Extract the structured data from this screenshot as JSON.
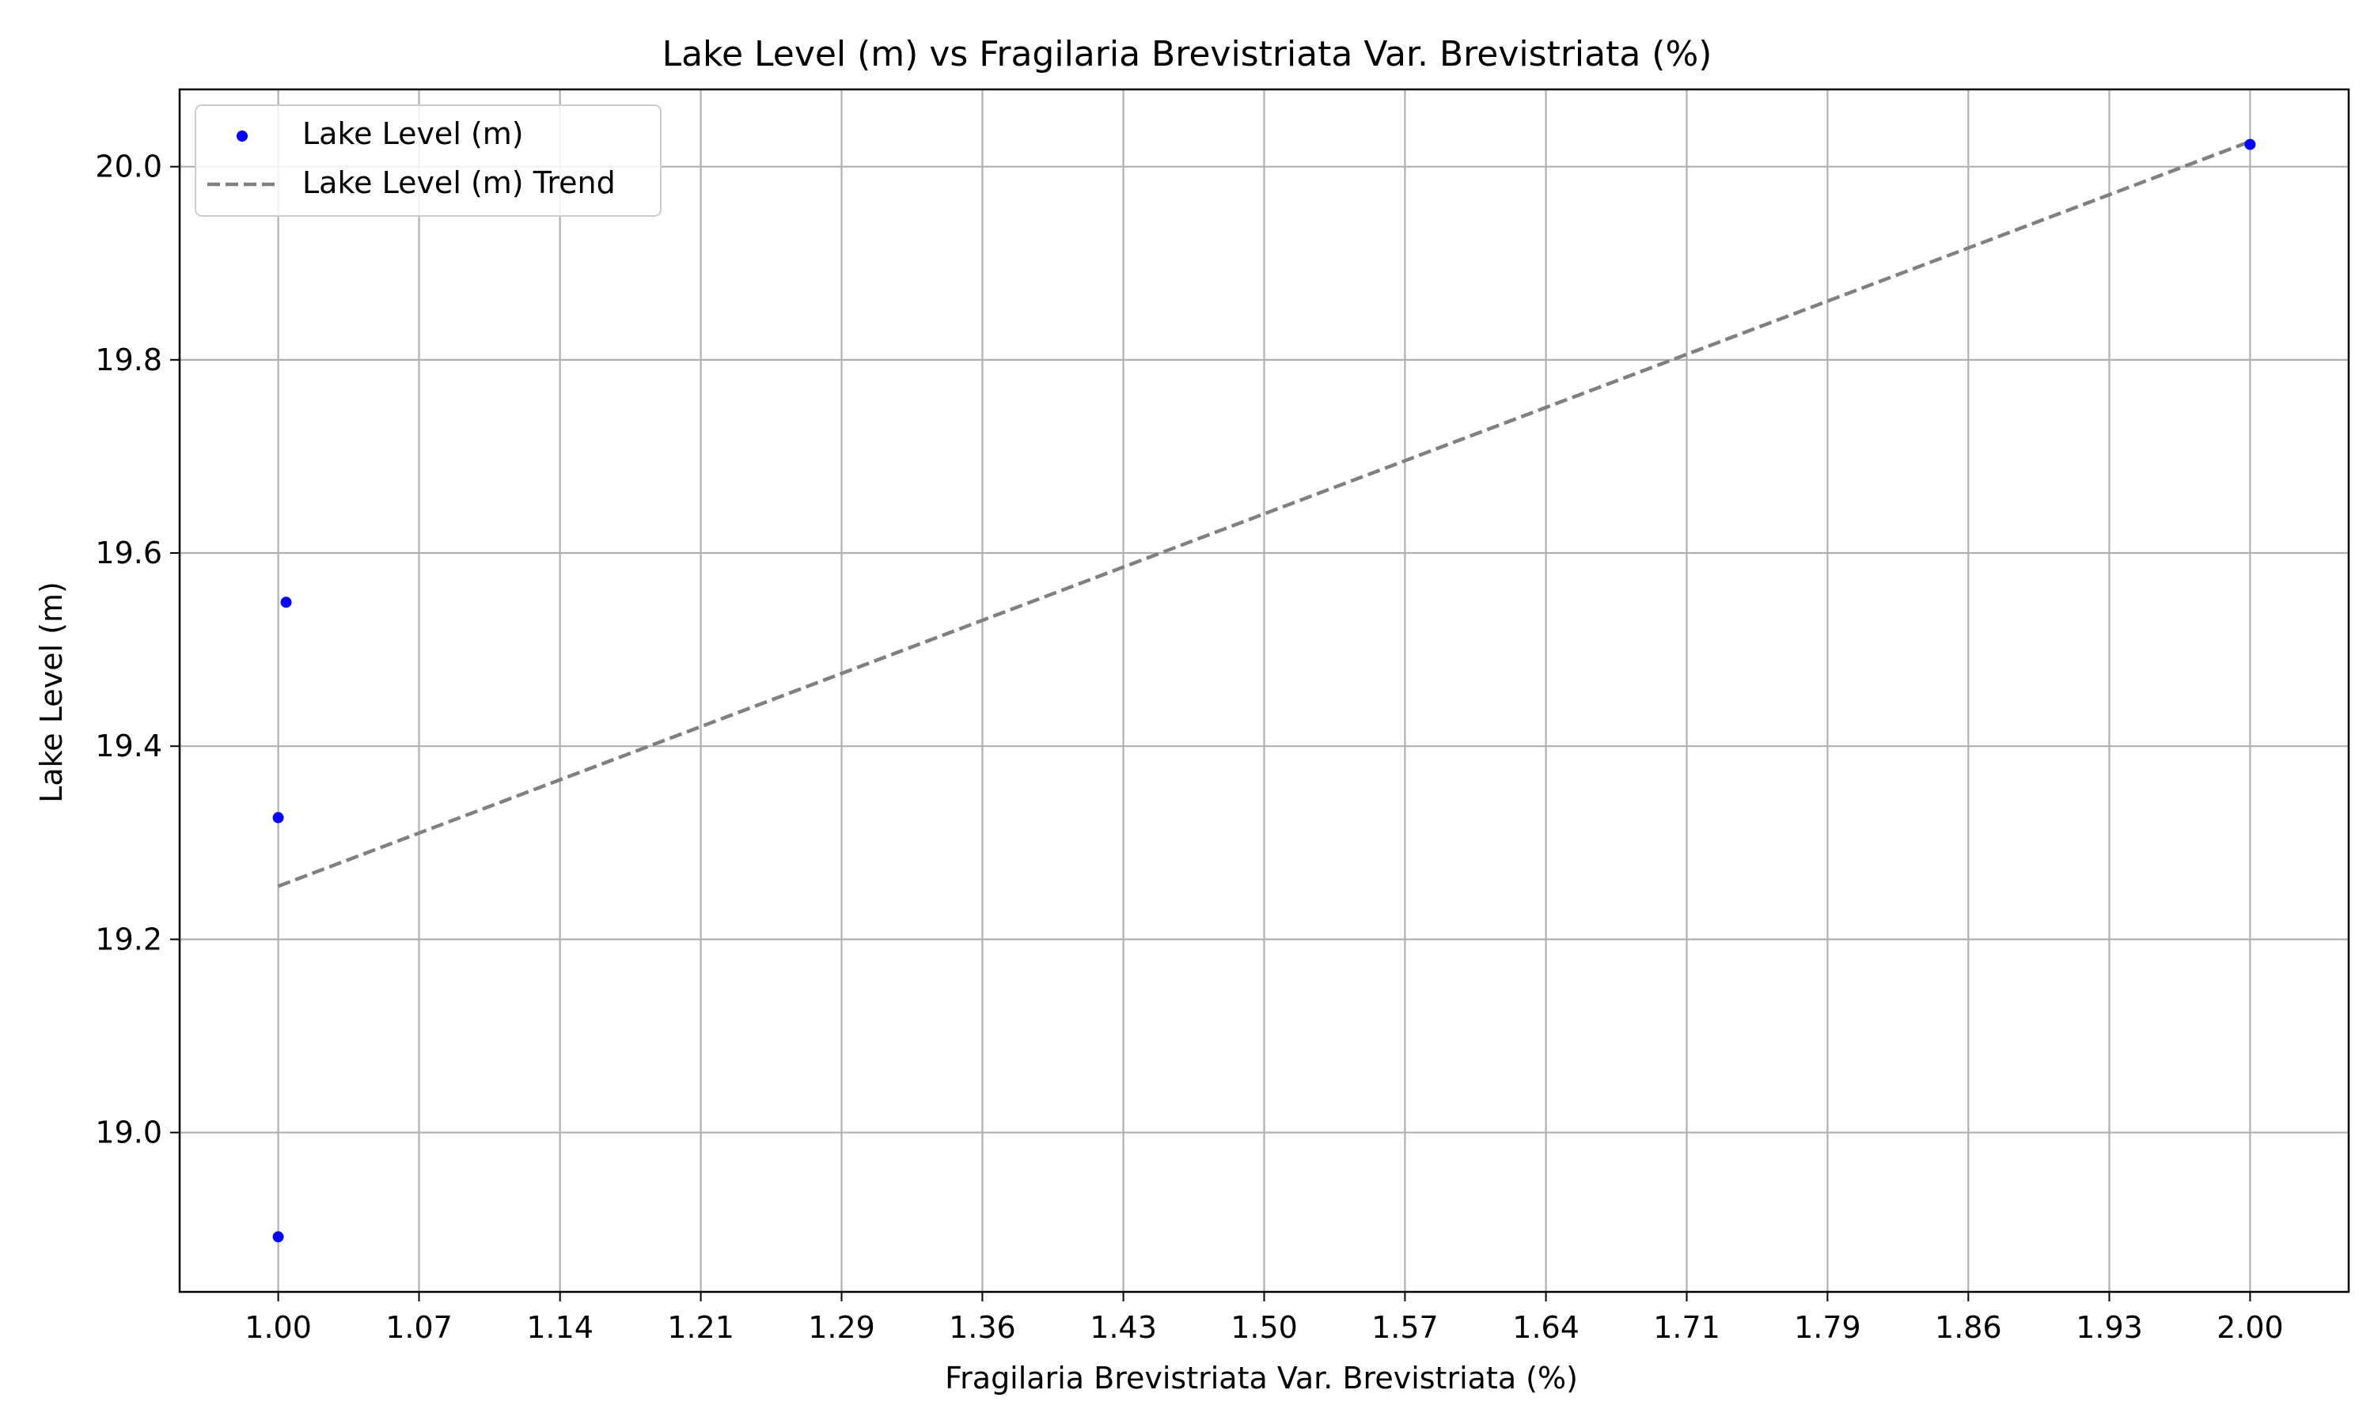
{
  "chart_data": {
    "type": "scatter",
    "title": "Lake Level (m) vs Fragilaria Brevistriata Var. Brevistriata (%)",
    "xlabel": "Fragilaria Brevistriata Var. Brevistriata (%)",
    "ylabel": "Lake Level (m)",
    "xlim": [
      0.95,
      2.05
    ],
    "ylim": [
      18.835,
      20.08
    ],
    "xticks": [
      1.0,
      1.0714,
      1.1429,
      1.2143,
      1.2857,
      1.3571,
      1.4286,
      1.5,
      1.5714,
      1.6429,
      1.7143,
      1.7857,
      1.8571,
      1.9286,
      2.0
    ],
    "xtick_labels": [
      "1.00",
      "1.07",
      "1.14",
      "1.21",
      "1.29",
      "1.36",
      "1.43",
      "1.50",
      "1.57",
      "1.64",
      "1.71",
      "1.79",
      "1.86",
      "1.93",
      "2.00"
    ],
    "yticks": [
      19.0,
      19.2,
      19.4,
      19.6,
      19.8,
      20.0
    ],
    "ytick_labels": [
      "19.0",
      "19.2",
      "19.4",
      "19.6",
      "19.8",
      "20.0"
    ],
    "grid": true,
    "legend_position": "upper-left",
    "series": [
      {
        "name": "Lake Level (m)",
        "kind": "scatter",
        "color": "#0000ff",
        "x": [
          1.0,
          1.0,
          1.004,
          2.0
        ],
        "y": [
          18.892,
          19.326,
          19.549,
          20.023
        ]
      },
      {
        "name": "Lake Level (m) Trend",
        "kind": "line",
        "style": "dashed",
        "color": "#808080",
        "x": [
          1.0,
          2.0
        ],
        "y": [
          19.255,
          20.026
        ]
      }
    ]
  }
}
